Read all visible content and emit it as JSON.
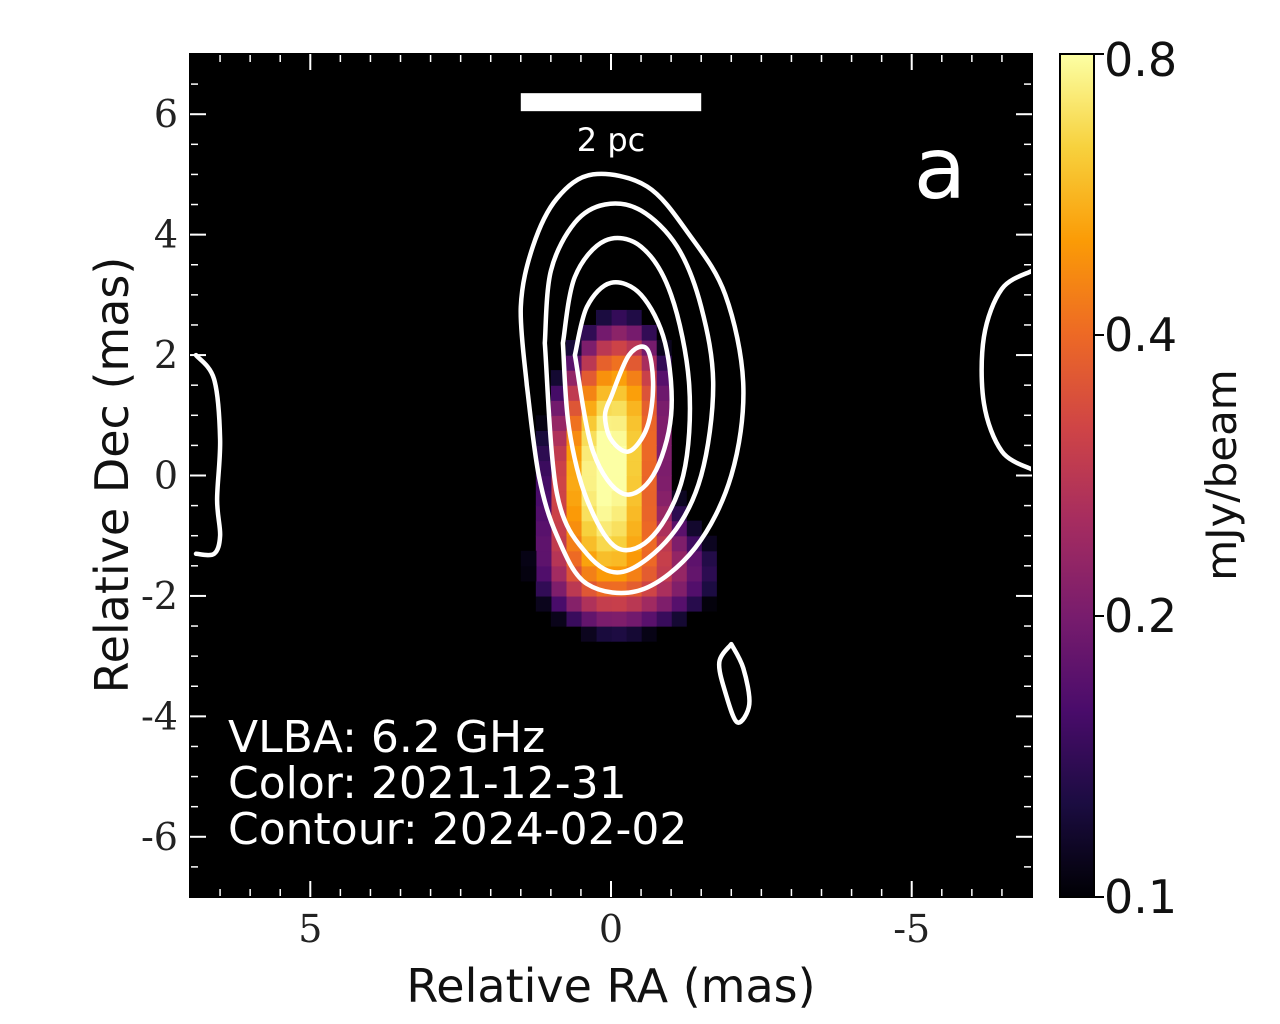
{
  "chart_data": {
    "type": "heatmap",
    "panel_label": "a",
    "xlabel": "Relative RA (mas)",
    "ylabel": "Relative Dec (mas)",
    "xlim": [
      7,
      -7
    ],
    "ylim": [
      -7,
      7
    ],
    "x_ticks": [
      "5",
      "0",
      "-5"
    ],
    "x_tick_values": [
      5,
      0,
      -5
    ],
    "y_ticks": [
      "6",
      "4",
      "2",
      "0",
      "-2",
      "-4",
      "-6"
    ],
    "y_tick_values": [
      6,
      4,
      2,
      0,
      -2,
      -4,
      -6
    ],
    "colorbar": {
      "label": "mJy/beam",
      "ticks": [
        "0.8",
        "0.4",
        "0.2",
        "0.1"
      ],
      "tick_values": [
        0.8,
        0.4,
        0.2,
        0.1
      ],
      "range": [
        0.1,
        0.8
      ],
      "scale": "log",
      "colormap": "inferno",
      "colors": [
        "#000004",
        "#1b0c41",
        "#4a0c6b",
        "#781c6d",
        "#a52c60",
        "#cf4446",
        "#ed6925",
        "#fb9b06",
        "#f7d13d",
        "#fcffa4"
      ]
    },
    "scale_bar": {
      "label": "2 pc",
      "length_mas": 3,
      "center": [
        0,
        6.2
      ]
    },
    "annotations": [
      "VLBA: 6.2 GHz",
      "Color: 2021-12-31",
      "Contour: 2024-02-02"
    ],
    "color_image": {
      "epoch": "2021-12-31",
      "peak_mJy_per_beam": 0.8,
      "components": [
        {
          "ra": 0.1,
          "dec": 0.0,
          "peak": 0.8,
          "sigma_ra": 0.55,
          "sigma_dec": 1.05
        },
        {
          "ra": -0.3,
          "dec": -1.6,
          "peak": 0.28,
          "sigma_ra": 1.1,
          "sigma_dec": 0.7
        },
        {
          "ra": -0.2,
          "dec": 1.5,
          "peak": 0.3,
          "sigma_ra": 0.5,
          "sigma_dec": 0.8
        }
      ]
    },
    "contours": {
      "epoch": "2024-02-02",
      "line_color": "#ffffff",
      "levels": [
        {
          "ra": [
            1.4,
            1.5,
            1.3,
            0.9,
            0.3,
            -0.6,
            -1.3,
            -1.9,
            -2.2,
            -2.0,
            -1.4,
            -0.5,
            0.4,
            0.9,
            1.2,
            1.4
          ],
          "dec": [
            1.5,
            2.8,
            3.8,
            4.6,
            5.0,
            4.8,
            4.0,
            3.0,
            1.5,
            0.0,
            -1.2,
            -1.9,
            -1.8,
            -1.0,
            0.0,
            1.5
          ]
        },
        {
          "ra": [
            1.1,
            1.0,
            0.6,
            0.1,
            -0.5,
            -1.1,
            -1.5,
            -1.7,
            -1.5,
            -1.0,
            -0.2,
            0.4,
            0.9,
            1.1
          ],
          "dec": [
            2.2,
            3.4,
            4.2,
            4.5,
            4.4,
            3.8,
            2.8,
            1.5,
            0.0,
            -1.0,
            -1.6,
            -1.3,
            -0.3,
            2.2
          ]
        },
        {
          "ra": [
            0.8,
            0.6,
            0.1,
            -0.5,
            -1.0,
            -1.3,
            -1.2,
            -0.7,
            -0.1,
            0.4,
            0.7,
            0.8
          ],
          "dec": [
            2.2,
            3.3,
            3.9,
            3.8,
            3.0,
            1.5,
            0.0,
            -1.0,
            -1.2,
            -0.4,
            0.8,
            2.2
          ]
        },
        {
          "ra": [
            0.6,
            0.4,
            0.0,
            -0.5,
            -0.9,
            -1.0,
            -0.7,
            -0.2,
            0.3,
            0.6
          ],
          "dec": [
            2.0,
            2.8,
            3.2,
            3.0,
            2.2,
            1.0,
            0.0,
            -0.3,
            0.4,
            2.0
          ]
        },
        {
          "ra": [
            0.0,
            -0.3,
            -0.6,
            -0.7,
            -0.6,
            -0.3,
            0.0,
            0.1,
            0.0
          ],
          "dec": [
            1.3,
            2.0,
            2.1,
            1.5,
            0.8,
            0.4,
            0.6,
            1.0,
            1.3
          ]
        },
        {
          "ra": [
            -2.0,
            -2.2,
            -2.3,
            -2.1,
            -1.9,
            -1.8,
            -2.0
          ],
          "dec": [
            -2.8,
            -3.2,
            -3.8,
            -4.1,
            -3.6,
            -3.1,
            -2.8
          ]
        },
        {
          "ra": [
            6.9,
            6.6,
            6.5,
            6.55,
            6.5,
            6.6,
            6.9
          ],
          "dec": [
            2.0,
            1.6,
            0.6,
            -0.4,
            -1.0,
            -1.3,
            -1.3
          ]
        },
        {
          "ra": [
            -7.0,
            -6.5,
            -6.2,
            -6.2,
            -6.5,
            -7.0
          ],
          "dec": [
            3.4,
            3.1,
            2.3,
            1.2,
            0.4,
            0.1
          ]
        }
      ]
    }
  }
}
